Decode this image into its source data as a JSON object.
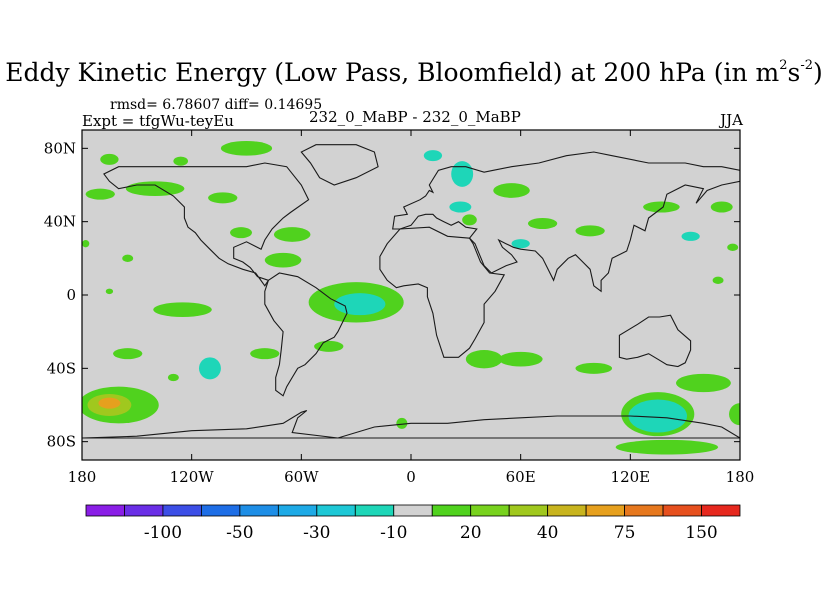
{
  "header": {
    "title_main": "Eddy Kinetic Energy (Low Pass, Bloomfield) at 200 hPa (in m",
    "title_sup1": "2",
    "title_mid": "s",
    "title_sup2": "-2",
    "title_end": ")",
    "stats": "rmsd= 6.78607 diff= 0.14695",
    "experiment": "Expt = tfgWu-teyEu",
    "difference_label": "232_0_MaBP - 232_0_MaBP",
    "season": "JJA"
  },
  "colors": {
    "background_field": "#d2d2d2",
    "outline": "#000000",
    "continent": "#1a1a1a"
  },
  "chart_data": {
    "type": "heatmap",
    "title": "Eddy Kinetic Energy (Low Pass, Bloomfield) at 200 hPa (in m2s-2)",
    "xlabel": "",
    "ylabel": "",
    "xlim": [
      -180,
      180
    ],
    "ylim": [
      -90,
      90
    ],
    "x_ticks": [
      {
        "value": -180,
        "label": "180"
      },
      {
        "value": -120,
        "label": "120W"
      },
      {
        "value": -60,
        "label": "60W"
      },
      {
        "value": 0,
        "label": "0"
      },
      {
        "value": 60,
        "label": "60E"
      },
      {
        "value": 120,
        "label": "120E"
      },
      {
        "value": 180,
        "label": "180"
      }
    ],
    "y_ticks": [
      {
        "value": 80,
        "label": "80N"
      },
      {
        "value": 40,
        "label": "40N"
      },
      {
        "value": 0,
        "label": "0"
      },
      {
        "value": -40,
        "label": "40S"
      },
      {
        "value": -80,
        "label": "80S"
      }
    ],
    "colorbar": {
      "colors": [
        "#8a1ee6",
        "#6a2ee6",
        "#3c4ee6",
        "#1e6ee6",
        "#1e8ee6",
        "#1eaae6",
        "#1ec8d6",
        "#1ed6b8",
        "#d2d2d2",
        "#50d21e",
        "#78d21e",
        "#a0c81e",
        "#c8b41e",
        "#e6a01e",
        "#e6781e",
        "#e6501e",
        "#e6281e"
      ],
      "labels": [
        {
          "index": 1.5,
          "text": "-100"
        },
        {
          "index": 3.5,
          "text": "-50"
        },
        {
          "index": 5.5,
          "text": "-30"
        },
        {
          "index": 7.5,
          "text": "-10"
        },
        {
          "index": 9.5,
          "text": "20"
        },
        {
          "index": 11.5,
          "text": "40"
        },
        {
          "index": 13.5,
          "text": "75"
        },
        {
          "index": 15.5,
          "text": "150"
        }
      ]
    },
    "anomaly_regions": [
      {
        "lon": -90,
        "lat": 80,
        "rlon": 14,
        "rlat": 4,
        "level": 20
      },
      {
        "lon": -165,
        "lat": 74,
        "rlon": 5,
        "rlat": 3,
        "level": 20
      },
      {
        "lon": -126,
        "lat": 73,
        "rlon": 4,
        "rlat": 2.5,
        "level": 20
      },
      {
        "lon": -140,
        "lat": 58,
        "rlon": 16,
        "rlat": 4,
        "level": 20
      },
      {
        "lon": -170,
        "lat": 55,
        "rlon": 8,
        "rlat": 3,
        "level": 20
      },
      {
        "lon": -103,
        "lat": 53,
        "rlon": 8,
        "rlat": 3,
        "level": 20
      },
      {
        "lon": -93,
        "lat": 34,
        "rlon": 6,
        "rlat": 3,
        "level": 20
      },
      {
        "lon": -65,
        "lat": 33,
        "rlon": 10,
        "rlat": 4,
        "level": 20
      },
      {
        "lon": -70,
        "lat": 19,
        "rlon": 10,
        "rlat": 4,
        "level": 20
      },
      {
        "lon": -178,
        "lat": 28,
        "rlon": 2,
        "rlat": 2,
        "level": 20
      },
      {
        "lon": -155,
        "lat": 20,
        "rlon": 3,
        "rlat": 2,
        "level": 20
      },
      {
        "lon": -165,
        "lat": 2,
        "rlon": 2,
        "rlat": 1.5,
        "level": 20
      },
      {
        "lon": 28,
        "lat": 66,
        "rlon": 6,
        "rlat": 7,
        "level": -10
      },
      {
        "lon": 12,
        "lat": 76,
        "rlon": 5,
        "rlat": 3,
        "level": -10
      },
      {
        "lon": 27,
        "lat": 48,
        "rlon": 6,
        "rlat": 3,
        "level": -10
      },
      {
        "lon": 55,
        "lat": 57,
        "rlon": 10,
        "rlat": 4,
        "level": 20
      },
      {
        "lon": 32,
        "lat": 41,
        "rlon": 4,
        "rlat": 3,
        "level": 20
      },
      {
        "lon": 72,
        "lat": 39,
        "rlon": 8,
        "rlat": 3,
        "level": 20
      },
      {
        "lon": 60,
        "lat": 28,
        "rlon": 5,
        "rlat": 2.5,
        "level": -10
      },
      {
        "lon": 153,
        "lat": 32,
        "rlon": 5,
        "rlat": 2.5,
        "level": -10
      },
      {
        "lon": 98,
        "lat": 35,
        "rlon": 8,
        "rlat": 3,
        "level": 20
      },
      {
        "lon": 137,
        "lat": 48,
        "rlon": 10,
        "rlat": 3,
        "level": 20
      },
      {
        "lon": 170,
        "lat": 48,
        "rlon": 6,
        "rlat": 3,
        "level": 20
      },
      {
        "lon": 176,
        "lat": 26,
        "rlon": 3,
        "rlat": 2,
        "level": 20
      },
      {
        "lon": 168,
        "lat": 8,
        "rlon": 3,
        "rlat": 2,
        "level": 20
      },
      {
        "lon": -30,
        "lat": -4,
        "rlon": 26,
        "rlat": 11,
        "level": 20
      },
      {
        "lon": -28,
        "lat": -5,
        "rlon": 14,
        "rlat": 6,
        "level": -10
      },
      {
        "lon": -125,
        "lat": -8,
        "rlon": 16,
        "rlat": 4,
        "level": 20
      },
      {
        "lon": -155,
        "lat": -32,
        "rlon": 8,
        "rlat": 3,
        "level": 20
      },
      {
        "lon": -110,
        "lat": -40,
        "rlon": 6,
        "rlat": 6,
        "level": -10
      },
      {
        "lon": -130,
        "lat": -45,
        "rlon": 3,
        "rlat": 2,
        "level": 20
      },
      {
        "lon": -80,
        "lat": -32,
        "rlon": 8,
        "rlat": 3,
        "level": 20
      },
      {
        "lon": -45,
        "lat": -28,
        "rlon": 8,
        "rlat": 3,
        "level": 20
      },
      {
        "lon": -160,
        "lat": -60,
        "rlon": 22,
        "rlat": 10,
        "level": 20
      },
      {
        "lon": -165,
        "lat": -60,
        "rlon": 12,
        "rlat": 6,
        "level": 40
      },
      {
        "lon": -165,
        "lat": -59,
        "rlon": 6,
        "rlat": 3,
        "level": 75
      },
      {
        "lon": -5,
        "lat": -70,
        "rlon": 3,
        "rlat": 3,
        "level": 20
      },
      {
        "lon": 40,
        "lat": -35,
        "rlon": 10,
        "rlat": 5,
        "level": 20
      },
      {
        "lon": 60,
        "lat": -35,
        "rlon": 12,
        "rlat": 4,
        "level": 20
      },
      {
        "lon": 100,
        "lat": -40,
        "rlon": 10,
        "rlat": 3,
        "level": 20
      },
      {
        "lon": 160,
        "lat": -48,
        "rlon": 15,
        "rlat": 5,
        "level": 20
      },
      {
        "lon": 180,
        "lat": -65,
        "rlon": 6,
        "rlat": 6,
        "level": 20
      },
      {
        "lon": 135,
        "lat": -65,
        "rlon": 20,
        "rlat": 12,
        "level": 20
      },
      {
        "lon": 135,
        "lat": -66,
        "rlon": 16,
        "rlat": 9,
        "level": -10
      },
      {
        "lon": 140,
        "lat": -83,
        "rlon": 28,
        "rlat": 4,
        "level": 20
      }
    ]
  }
}
